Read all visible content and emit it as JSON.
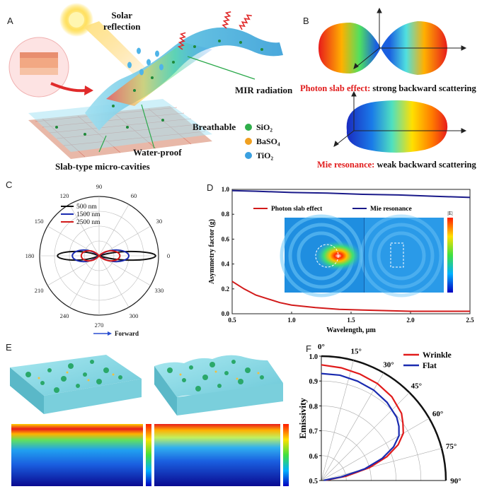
{
  "panel_labels": {
    "a": "A",
    "b": "B",
    "c": "C",
    "d": "D",
    "e": "E",
    "f": "F"
  },
  "panel_a": {
    "labels": {
      "solar": "Solar\nreflection",
      "mir": "MIR radiation",
      "breathable": "Breathable",
      "waterproof": "Water-proof",
      "slab": "Slab-type micro-cavities"
    },
    "legend": [
      {
        "text": "SiO₂",
        "color": "#2fae4a"
      },
      {
        "text": "BaSO₄",
        "color": "#f0a020"
      },
      {
        "text": "TiO₂",
        "color": "#3aa0e0"
      }
    ]
  },
  "panel_b": {
    "caption1_red": "Photon slab effect:",
    "caption1_black": " strong backward scattering",
    "caption2_red": "Mie resonance:",
    "caption2_black": " weak backward scattering",
    "colors": {
      "red": "#e11b1b"
    }
  },
  "chart_data": [
    {
      "type": "polar",
      "panel": "C",
      "angle_ticks": [
        "0",
        "30",
        "60",
        "90",
        "120",
        "150",
        "180",
        "210",
        "240",
        "270",
        "300",
        "330"
      ],
      "legend_position": "top-left",
      "series": [
        {
          "name": "500   nm",
          "color": "#111111",
          "forward_extent": 0.95,
          "backward_extent": 0.7,
          "width": 0.12
        },
        {
          "name": "1500 nm",
          "color": "#1a2bb0",
          "forward_extent": 0.5,
          "backward_extent": 0.45,
          "width": 0.16
        },
        {
          "name": "2500 nm",
          "color": "#d21a1a",
          "forward_extent": 0.35,
          "backward_extent": 0.3,
          "width": 0.14
        }
      ],
      "annotation": "Forward",
      "annotation_color": "#2a4fd0"
    },
    {
      "type": "line",
      "panel": "D",
      "xlabel": "Wavelength, μm",
      "ylabel": "Asymmetry factor (g)",
      "xlim": [
        0.5,
        2.5
      ],
      "ylim": [
        0.0,
        1.0
      ],
      "x_ticks": [
        "0.5",
        "1.0",
        "1.5",
        "2.0",
        "2.5"
      ],
      "y_ticks": [
        "0.0",
        "0.2",
        "0.4",
        "0.6",
        "0.8",
        "1.0"
      ],
      "legend_position": "top",
      "inset_label": "|E|",
      "series": [
        {
          "name": "Photon slab effect",
          "color": "#d21a1a",
          "x": [
            0.5,
            0.6,
            0.7,
            0.8,
            0.9,
            1.0,
            1.2,
            1.4,
            1.6,
            1.8,
            2.0,
            2.2,
            2.5
          ],
          "y": [
            0.26,
            0.2,
            0.15,
            0.12,
            0.09,
            0.07,
            0.05,
            0.035,
            0.03,
            0.025,
            0.02,
            0.02,
            0.02
          ]
        },
        {
          "name": "Mie resonance",
          "color": "#1a1a8a",
          "x": [
            0.5,
            0.7,
            1.0,
            1.3,
            1.6,
            1.9,
            2.2,
            2.5
          ],
          "y": [
            0.99,
            0.985,
            0.975,
            0.97,
            0.96,
            0.955,
            0.945,
            0.935
          ]
        }
      ]
    },
    {
      "type": "polar",
      "panel": "F",
      "ylabel": "Emissivity",
      "rlim": [
        0.5,
        1.0
      ],
      "r_ticks": [
        "0.5",
        "0.6",
        "0.7",
        "0.8",
        "0.9",
        "1.0"
      ],
      "angle_ticks": [
        "0°",
        "15°",
        "30°",
        "45°",
        "60°",
        "75°",
        "90°"
      ],
      "legend_position": "top-right",
      "series": [
        {
          "name": "Wrinkle",
          "color": "#e11b1b",
          "theta_deg": [
            0,
            10,
            20,
            30,
            40,
            50,
            55,
            60,
            65,
            70,
            75,
            80,
            85
          ],
          "r": [
            0.965,
            0.96,
            0.955,
            0.95,
            0.94,
            0.92,
            0.9,
            0.88,
            0.84,
            0.78,
            0.7,
            0.6,
            0.52
          ]
        },
        {
          "name": "Flat",
          "color": "#1a2bb0",
          "theta_deg": [
            0,
            10,
            20,
            30,
            40,
            50,
            55,
            60,
            65,
            70,
            75,
            80,
            85
          ],
          "r": [
            0.93,
            0.93,
            0.925,
            0.92,
            0.91,
            0.895,
            0.88,
            0.86,
            0.82,
            0.76,
            0.68,
            0.58,
            0.51
          ]
        }
      ]
    }
  ]
}
